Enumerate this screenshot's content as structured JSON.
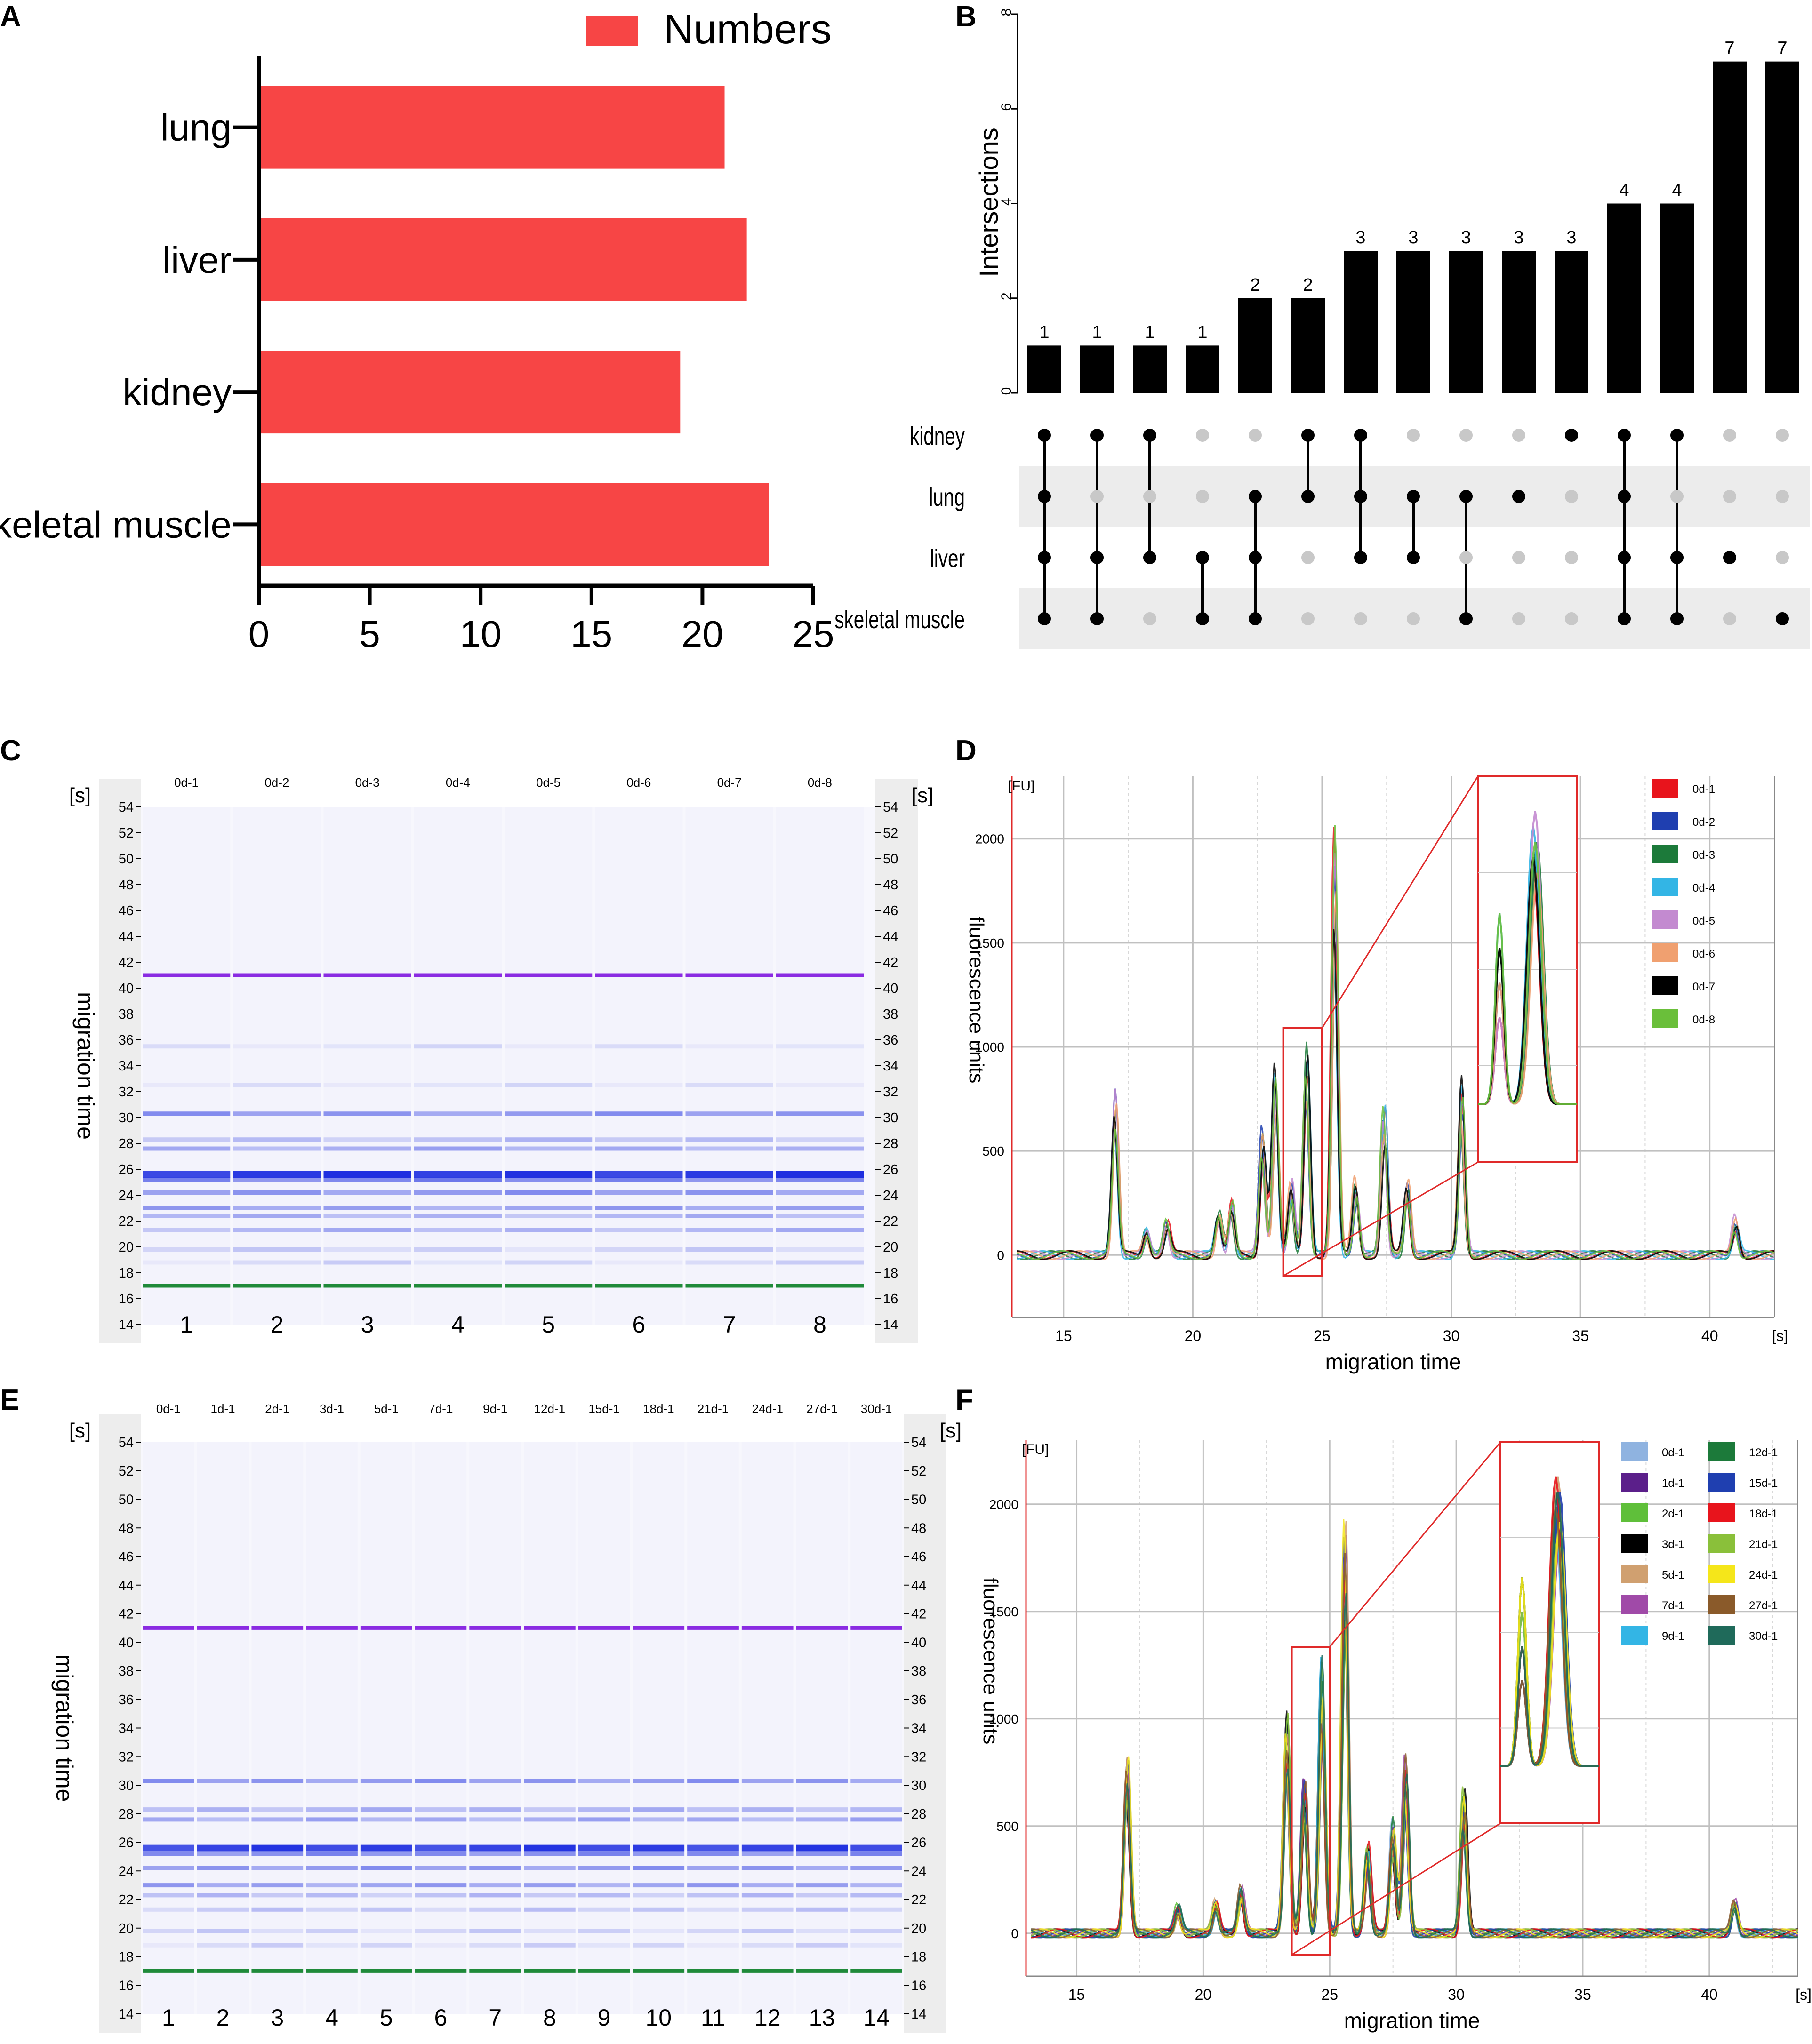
{
  "panels": {
    "a": "A",
    "b": "B",
    "c": "C",
    "d": "D",
    "e": "E",
    "f": "F"
  },
  "colors": {
    "bar_red": "#f74545",
    "purple": "#8a2be2",
    "green": "#1f8a3a",
    "band_blue": "#1f2fe0",
    "zoom_red": "#e02a2a"
  },
  "chart_data": [
    {
      "id": "A",
      "type": "bar",
      "orientation": "horizontal",
      "legend": "Numbers",
      "categories": [
        "lung",
        "liver",
        "kidney",
        "skeletal muscle"
      ],
      "values": [
        21,
        22,
        19,
        23
      ],
      "xlim": [
        0,
        25
      ],
      "xticks": [
        "0",
        "5",
        "10",
        "15",
        "20",
        "25"
      ]
    },
    {
      "id": "B",
      "type": "bar",
      "subtype": "upset",
      "ylabel": "Intersections",
      "ylim": [
        0,
        8
      ],
      "yticks": [
        "0",
        "2",
        "4",
        "6",
        "8"
      ],
      "values": [
        1,
        1,
        1,
        1,
        2,
        2,
        3,
        3,
        3,
        3,
        3,
        4,
        4,
        7,
        7
      ],
      "value_labels": [
        "1",
        "1",
        "1",
        "1",
        "2",
        "2",
        "3",
        "3",
        "3",
        "3",
        "3",
        "4",
        "4",
        "7",
        "7"
      ],
      "sets": [
        "kidney",
        "lung",
        "liver",
        "skeletal muscle"
      ],
      "membership": [
        [
          1,
          1,
          1,
          1
        ],
        [
          1,
          0,
          1,
          1
        ],
        [
          1,
          0,
          1,
          0
        ],
        [
          0,
          0,
          1,
          1
        ],
        [
          0,
          1,
          1,
          1
        ],
        [
          1,
          1,
          0,
          0
        ],
        [
          1,
          1,
          1,
          0
        ],
        [
          0,
          1,
          1,
          0
        ],
        [
          0,
          1,
          0,
          1
        ],
        [
          0,
          1,
          0,
          0
        ],
        [
          1,
          0,
          0,
          0
        ],
        [
          1,
          1,
          1,
          1
        ],
        [
          1,
          0,
          1,
          1
        ],
        [
          0,
          0,
          1,
          0
        ],
        [
          0,
          0,
          0,
          1
        ]
      ]
    },
    {
      "id": "C",
      "type": "heatmap",
      "subtype": "gel",
      "unit": "[s]",
      "ylabel": "migration time",
      "lanes": [
        "0d-1",
        "0d-2",
        "0d-3",
        "0d-4",
        "0d-5",
        "0d-6",
        "0d-7",
        "0d-8"
      ],
      "lane_numbers": [
        "1",
        "2",
        "3",
        "4",
        "5",
        "6",
        "7",
        "8"
      ],
      "ylim": [
        14,
        54
      ],
      "yticks": [
        "14",
        "16",
        "18",
        "20",
        "22",
        "24",
        "26",
        "28",
        "30",
        "32",
        "34",
        "36",
        "38",
        "40",
        "42",
        "44",
        "46",
        "48",
        "50",
        "52",
        "54"
      ],
      "upper_marker": 41,
      "lower_marker": 17,
      "bands": [
        {
          "t": 25.6,
          "a": 0.95
        },
        {
          "t": 25.2,
          "a": 0.55
        },
        {
          "t": 24.2,
          "a": 0.45
        },
        {
          "t": 23.0,
          "a": 0.4
        },
        {
          "t": 22.4,
          "a": 0.3
        },
        {
          "t": 21.3,
          "a": 0.3
        },
        {
          "t": 27.6,
          "a": 0.35
        },
        {
          "t": 28.3,
          "a": 0.25
        },
        {
          "t": 30.3,
          "a": 0.45
        },
        {
          "t": 19.8,
          "a": 0.15
        },
        {
          "t": 18.8,
          "a": 0.12
        },
        {
          "t": 35.5,
          "a": 0.08
        },
        {
          "t": 32.5,
          "a": 0.08
        }
      ]
    },
    {
      "id": "D",
      "type": "line",
      "xlabel": "migration time",
      "ylabel": "fluorescence units",
      "unit_y": "[FU]",
      "unit_x": "[s]",
      "xlim": [
        13,
        42.5
      ],
      "ylim": [
        -300,
        2300
      ],
      "xticks": [
        "15",
        "20",
        "25",
        "30",
        "35",
        "40"
      ],
      "yticks": [
        "0",
        "500",
        "1000",
        "1500",
        "2000"
      ],
      "series": [
        {
          "name": "0d-1",
          "color": "#e8141c"
        },
        {
          "name": "0d-2",
          "color": "#1f3fb0"
        },
        {
          "name": "0d-3",
          "color": "#1c7a3a"
        },
        {
          "name": "0d-4",
          "color": "#33b5e5"
        },
        {
          "name": "0d-5",
          "color": "#c38ad0"
        },
        {
          "name": "0d-6",
          "color": "#f0a070"
        },
        {
          "name": "0d-7",
          "color": "#000000"
        },
        {
          "name": "0d-8",
          "color": "#6abf3a"
        }
      ],
      "peaks": [
        [
          17,
          780
        ],
        [
          18.2,
          120
        ],
        [
          19,
          150
        ],
        [
          21,
          200
        ],
        [
          21.5,
          250
        ],
        [
          22.7,
          600
        ],
        [
          23.2,
          880
        ],
        [
          23.8,
          350
        ],
        [
          24.4,
          980
        ],
        [
          25.5,
          1950
        ],
        [
          26.3,
          350
        ],
        [
          27.4,
          700
        ],
        [
          28.3,
          350
        ],
        [
          30.4,
          820
        ],
        [
          41.0,
          170
        ]
      ],
      "zoom_range": [
        23.5,
        25.0
      ]
    },
    {
      "id": "E",
      "type": "heatmap",
      "subtype": "gel",
      "unit": "[s]",
      "ylabel": "migration time",
      "lanes": [
        "0d-1",
        "1d-1",
        "2d-1",
        "3d-1",
        "5d-1",
        "7d-1",
        "9d-1",
        "12d-1",
        "15d-1",
        "18d-1",
        "21d-1",
        "24d-1",
        "27d-1",
        "30d-1"
      ],
      "lane_numbers": [
        "1",
        "2",
        "3",
        "4",
        "5",
        "6",
        "7",
        "8",
        "9",
        "10",
        "11",
        "12",
        "13",
        "14"
      ],
      "ylim": [
        14,
        54
      ],
      "yticks": [
        "14",
        "16",
        "18",
        "20",
        "22",
        "24",
        "26",
        "28",
        "30",
        "32",
        "34",
        "36",
        "38",
        "40",
        "42",
        "44",
        "46",
        "48",
        "50",
        "52",
        "54"
      ],
      "upper_marker": 41,
      "lower_marker": 17,
      "bands": [
        {
          "t": 25.6,
          "a": 0.9
        },
        {
          "t": 25.2,
          "a": 0.5
        },
        {
          "t": 24.2,
          "a": 0.45
        },
        {
          "t": 23.0,
          "a": 0.4
        },
        {
          "t": 22.3,
          "a": 0.25
        },
        {
          "t": 21.3,
          "a": 0.2
        },
        {
          "t": 27.6,
          "a": 0.35
        },
        {
          "t": 28.3,
          "a": 0.3
        },
        {
          "t": 30.3,
          "a": 0.45
        },
        {
          "t": 19.8,
          "a": 0.15
        },
        {
          "t": 18.8,
          "a": 0.12
        }
      ]
    },
    {
      "id": "F",
      "type": "line",
      "xlabel": "migration time",
      "ylabel": "fluorescence units",
      "unit_y": "[FU]",
      "unit_x": "[s]",
      "xlim": [
        13,
        43.5
      ],
      "ylim": [
        -200,
        2300
      ],
      "xticks": [
        "15",
        "20",
        "25",
        "30",
        "35",
        "40"
      ],
      "yticks": [
        "0",
        "500",
        "1000",
        "1500",
        "2000"
      ],
      "series": [
        {
          "name": "0d-1",
          "color": "#8fb3e0"
        },
        {
          "name": "1d-1",
          "color": "#5b1f8a"
        },
        {
          "name": "2d-1",
          "color": "#5fbf3a"
        },
        {
          "name": "3d-1",
          "color": "#000000"
        },
        {
          "name": "5d-1",
          "color": "#d0a070"
        },
        {
          "name": "7d-1",
          "color": "#a04aa8"
        },
        {
          "name": "9d-1",
          "color": "#33b5e5"
        },
        {
          "name": "12d-1",
          "color": "#1c7a3a"
        },
        {
          "name": "15d-1",
          "color": "#1f3fb0"
        },
        {
          "name": "18d-1",
          "color": "#e8141c"
        },
        {
          "name": "21d-1",
          "color": "#8ac03a"
        },
        {
          "name": "24d-1",
          "color": "#f5e61a"
        },
        {
          "name": "27d-1",
          "color": "#8a5a2a"
        },
        {
          "name": "30d-1",
          "color": "#1f6a5a"
        }
      ],
      "peaks": [
        [
          17,
          800
        ],
        [
          19,
          120
        ],
        [
          20.5,
          150
        ],
        [
          21.5,
          200
        ],
        [
          23.3,
          1000
        ],
        [
          24,
          700
        ],
        [
          24.7,
          1250
        ],
        [
          25.6,
          1850
        ],
        [
          26.5,
          400
        ],
        [
          27.5,
          500
        ],
        [
          28,
          780
        ],
        [
          30.3,
          650
        ],
        [
          41,
          150
        ]
      ],
      "zoom_range": [
        23.5,
        25.0
      ]
    }
  ]
}
